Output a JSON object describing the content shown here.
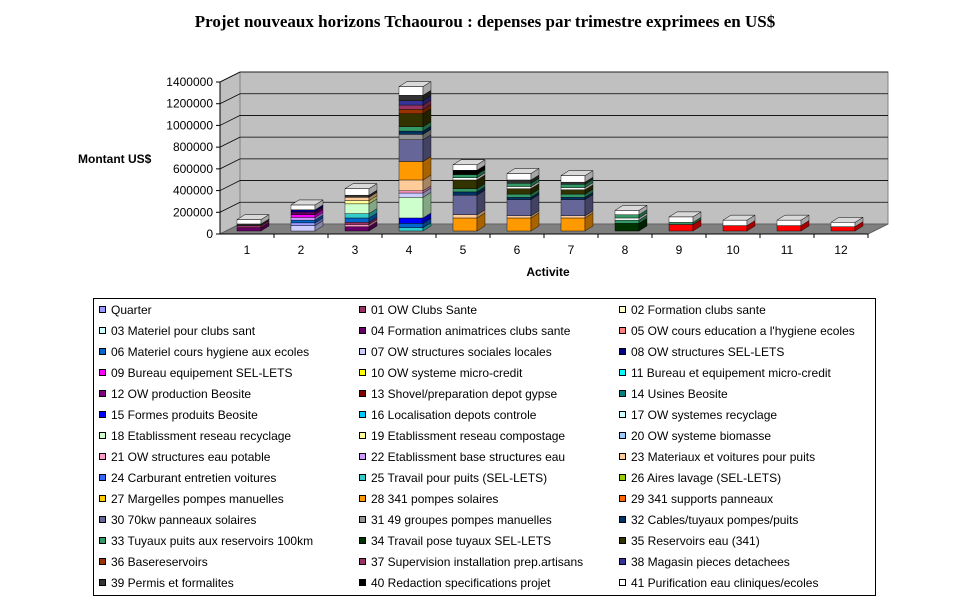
{
  "chart_data": {
    "type": "bar",
    "stacked": true,
    "title": "Projet nouveaux horizons Tchaourou : depenses par trimestre exprimees en US$",
    "xlabel": "Activite",
    "ylabel": "Montant US$",
    "ylim": [
      0,
      1400000
    ],
    "yticks": [
      "0",
      "200000",
      "400000",
      "600000",
      "800000",
      "1000000",
      "1200000",
      "1400000"
    ],
    "categories": [
      "1",
      "2",
      "3",
      "4",
      "5",
      "6",
      "7",
      "8",
      "9",
      "10",
      "11",
      "12"
    ],
    "grid": true,
    "legend_position": "bottom",
    "legend": [
      {
        "name": "Quarter",
        "color": "#9999FF"
      },
      {
        "name": "01 OW Clubs Sante",
        "color": "#993366"
      },
      {
        "name": "02 Formation clubs sante",
        "color": "#FFFFCC"
      },
      {
        "name": "03 Materiel pour clubs sant",
        "color": "#CCFFFF"
      },
      {
        "name": "04 Formation animatrices clubs sante",
        "color": "#660066"
      },
      {
        "name": "05 OW cours education a l'hygiene ecoles",
        "color": "#FF8080"
      },
      {
        "name": "06 Materiel cours hygiene aux ecoles",
        "color": "#0066CC"
      },
      {
        "name": "07 OW structures sociales locales",
        "color": "#CCCCFF"
      },
      {
        "name": "08 OW structures SEL-LETS",
        "color": "#000080"
      },
      {
        "name": "09 Bureau equipement SEL-LETS",
        "color": "#FF00FF"
      },
      {
        "name": "10 OW systeme micro-credit",
        "color": "#FFFF00"
      },
      {
        "name": "11 Bureau et equipement micro-credit",
        "color": "#00FFFF"
      },
      {
        "name": "12 OW  production Beosite",
        "color": "#800080"
      },
      {
        "name": "13 Shovel/preparation depot gypse",
        "color": "#800000"
      },
      {
        "name": "14 Usines Beosite",
        "color": "#008080"
      },
      {
        "name": "15 Formes produits Beosite",
        "color": "#0000FF"
      },
      {
        "name": "16 Localisation depots controle",
        "color": "#00CCFF"
      },
      {
        "name": "17 OW systemes recyclage",
        "color": "#CCFFFF"
      },
      {
        "name": "18 Etablissment reseau recyclage",
        "color": "#CCFFCC"
      },
      {
        "name": "19 Etablissment reseau compostage",
        "color": "#FFFF99"
      },
      {
        "name": "20 OW systeme biomasse",
        "color": "#99CCFF"
      },
      {
        "name": "21 OW structures eau potable",
        "color": "#FF99CC"
      },
      {
        "name": "22 Etablissment base structures eau",
        "color": "#CC99FF"
      },
      {
        "name": "23 Materiaux et voitures pour puits",
        "color": "#FFCC99"
      },
      {
        "name": "24 Carburant entretien voitures",
        "color": "#3366FF"
      },
      {
        "name": "25 Travail pour puits (SEL-LETS)",
        "color": "#33CCCC"
      },
      {
        "name": "26 Aires lavage (SEL-LETS)",
        "color": "#99CC00"
      },
      {
        "name": "27 Margelles pompes manuelles",
        "color": "#FFCC00"
      },
      {
        "name": "28 341 pompes solaires",
        "color": "#FF9900"
      },
      {
        "name": "29 341 supports panneaux",
        "color": "#FF6600"
      },
      {
        "name": "30 70kw panneaux solaires",
        "color": "#666699"
      },
      {
        "name": "31 49 groupes pompes manuelles",
        "color": "#969696"
      },
      {
        "name": "32 Cables/tuyaux pompes/puits",
        "color": "#003366"
      },
      {
        "name": "33 Tuyaux puits aux reservoirs 100km",
        "color": "#339966"
      },
      {
        "name": "34 Travail pose tuyaux SEL-LETS",
        "color": "#003300"
      },
      {
        "name": "35 Reservoirs eau (341)",
        "color": "#333300"
      },
      {
        "name": "36 Basereservoirs",
        "color": "#993300"
      },
      {
        "name": "37 Supervision installation prep.artisans",
        "color": "#993366"
      },
      {
        "name": "38 Magasin pieces detachees",
        "color": "#333399"
      },
      {
        "name": "39 Permis et formalites",
        "color": "#333333"
      },
      {
        "name": "40 Redaction specifications projet",
        "color": "#000000"
      },
      {
        "name": "41 Purification eau cliniques/ecoles",
        "color": "#FFFFFF"
      }
    ],
    "stacks": [
      {
        "category": "1",
        "segments": [
          {
            "color": "#660066",
            "value": 30000
          },
          {
            "color": "#993366",
            "value": 20000
          },
          {
            "color": "#333333",
            "value": 15000
          },
          {
            "color": "#FFFFFF",
            "value": 40000
          }
        ]
      },
      {
        "category": "2",
        "segments": [
          {
            "color": "#CCCCFF",
            "value": 50000
          },
          {
            "color": "#9999FF",
            "value": 25000
          },
          {
            "color": "#0066CC",
            "value": 25000
          },
          {
            "color": "#CC99FF",
            "value": 25000
          },
          {
            "color": "#FF00FF",
            "value": 25000
          },
          {
            "color": "#660066",
            "value": 25000
          },
          {
            "color": "#000080",
            "value": 20000
          },
          {
            "color": "#FFFFFF",
            "value": 45000
          }
        ]
      },
      {
        "category": "3",
        "segments": [
          {
            "color": "#660066",
            "value": 40000
          },
          {
            "color": "#FF99CC",
            "value": 20000
          },
          {
            "color": "#993366",
            "value": 20000
          },
          {
            "color": "#0066CC",
            "value": 40000
          },
          {
            "color": "#33CCCC",
            "value": 40000
          },
          {
            "color": "#CCFFCC",
            "value": 90000
          },
          {
            "color": "#FFFF99",
            "value": 30000
          },
          {
            "color": "#FFCC99",
            "value": 30000
          },
          {
            "color": "#333333",
            "value": 20000
          },
          {
            "color": "#FFFFFF",
            "value": 60000
          }
        ]
      },
      {
        "category": "4",
        "segments": [
          {
            "color": "#33CCCC",
            "value": 30000
          },
          {
            "color": "#0066CC",
            "value": 40000
          },
          {
            "color": "#0000FF",
            "value": 50000
          },
          {
            "color": "#CCFFCC",
            "value": 190000
          },
          {
            "color": "#CCCCFF",
            "value": 40000
          },
          {
            "color": "#FF99CC",
            "value": 20000
          },
          {
            "color": "#FFCC99",
            "value": 100000
          },
          {
            "color": "#FF9900",
            "value": 170000
          },
          {
            "color": "#666699",
            "value": 200000
          },
          {
            "color": "#969696",
            "value": 50000
          },
          {
            "color": "#003366",
            "value": 30000
          },
          {
            "color": "#339966",
            "value": 40000
          },
          {
            "color": "#333300",
            "value": 120000
          },
          {
            "color": "#993300",
            "value": 40000
          },
          {
            "color": "#993366",
            "value": 40000
          },
          {
            "color": "#333399",
            "value": 40000
          },
          {
            "color": "#333333",
            "value": 50000
          },
          {
            "color": "#FFFFFF",
            "value": 80000
          }
        ]
      },
      {
        "category": "5",
        "segments": [
          {
            "color": "#FF9900",
            "value": 120000
          },
          {
            "color": "#FFCC99",
            "value": 30000
          },
          {
            "color": "#666699",
            "value": 180000
          },
          {
            "color": "#003366",
            "value": 30000
          },
          {
            "color": "#339966",
            "value": 30000
          },
          {
            "color": "#333300",
            "value": 80000
          },
          {
            "color": "#FFFFFF",
            "value": 20000
          },
          {
            "color": "#339966",
            "value": 30000
          },
          {
            "color": "#000000",
            "value": 40000
          },
          {
            "color": "#FFFFFF",
            "value": 50000
          }
        ]
      },
      {
        "category": "6",
        "segments": [
          {
            "color": "#FF9900",
            "value": 120000
          },
          {
            "color": "#FFCC99",
            "value": 20000
          },
          {
            "color": "#666699",
            "value": 150000
          },
          {
            "color": "#003366",
            "value": 20000
          },
          {
            "color": "#339966",
            "value": 30000
          },
          {
            "color": "#333300",
            "value": 50000
          },
          {
            "color": "#FFFFFF",
            "value": 20000
          },
          {
            "color": "#339966",
            "value": 30000
          },
          {
            "color": "#333333",
            "value": 30000
          },
          {
            "color": "#FFFFFF",
            "value": 60000
          }
        ]
      },
      {
        "category": "7",
        "segments": [
          {
            "color": "#FF9900",
            "value": 120000
          },
          {
            "color": "#FFCC99",
            "value": 20000
          },
          {
            "color": "#666699",
            "value": 150000
          },
          {
            "color": "#003366",
            "value": 20000
          },
          {
            "color": "#339966",
            "value": 30000
          },
          {
            "color": "#333300",
            "value": 40000
          },
          {
            "color": "#FFFFFF",
            "value": 20000
          },
          {
            "color": "#339966",
            "value": 30000
          },
          {
            "color": "#333333",
            "value": 20000
          },
          {
            "color": "#FFFFFF",
            "value": 60000
          }
        ]
      },
      {
        "category": "8",
        "segments": [
          {
            "color": "#003300",
            "value": 70000
          },
          {
            "color": "#339966",
            "value": 30000
          },
          {
            "color": "#FFFFFF",
            "value": 20000
          },
          {
            "color": "#339966",
            "value": 30000
          },
          {
            "color": "#FFFFFF",
            "value": 40000
          }
        ]
      },
      {
        "category": "9",
        "segments": [
          {
            "color": "#FF0000",
            "value": 60000
          },
          {
            "color": "#339966",
            "value": 20000
          },
          {
            "color": "#FFFFFF",
            "value": 50000
          }
        ]
      },
      {
        "category": "10",
        "segments": [
          {
            "color": "#FF0000",
            "value": 50000
          },
          {
            "color": "#FFFFFF",
            "value": 50000
          }
        ]
      },
      {
        "category": "11",
        "segments": [
          {
            "color": "#FF0000",
            "value": 50000
          },
          {
            "color": "#FFFFFF",
            "value": 50000
          }
        ]
      },
      {
        "category": "12",
        "segments": [
          {
            "color": "#FF0000",
            "value": 40000
          },
          {
            "color": "#FFFFFF",
            "value": 40000
          }
        ]
      }
    ]
  }
}
